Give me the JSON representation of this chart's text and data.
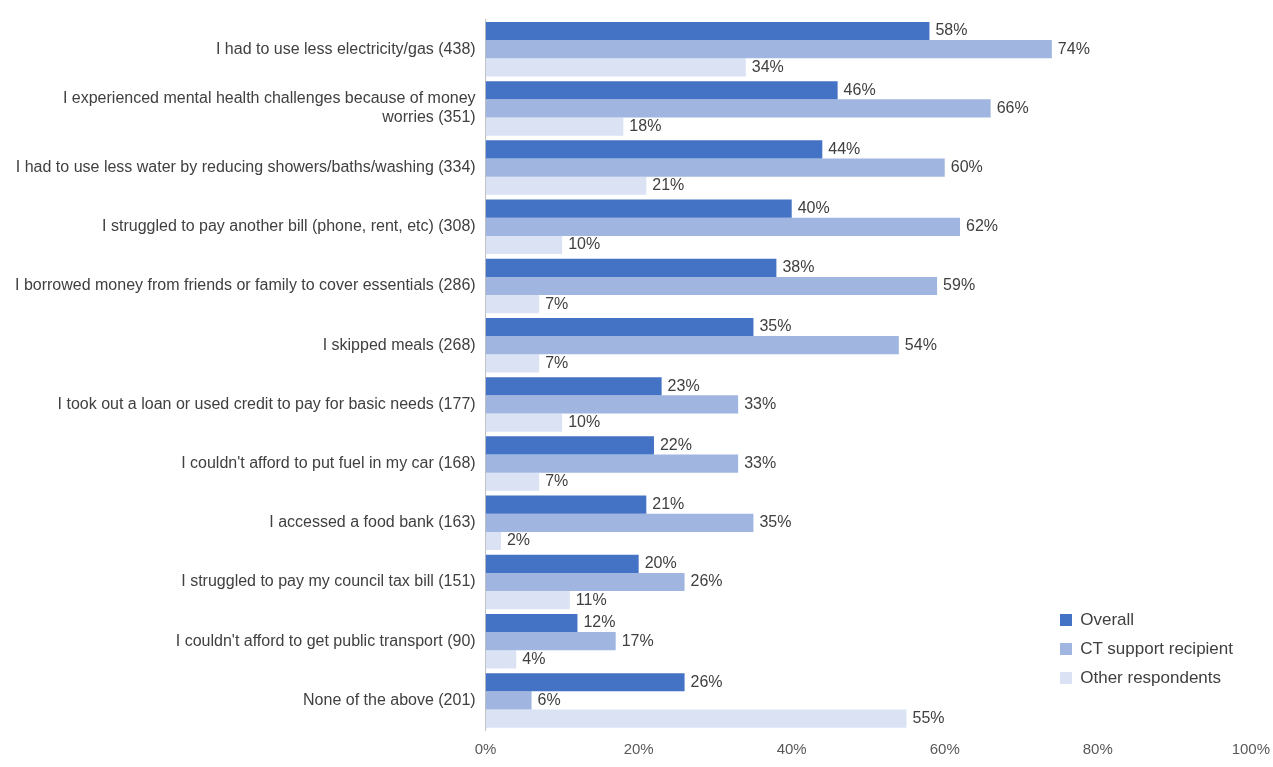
{
  "chart_data": {
    "type": "bar",
    "orientation": "horizontal",
    "categories": [
      "I had to use less electricity/gas (438)",
      "I experienced mental health challenges because of money worries (351)",
      "I had to use less water by reducing showers/baths/washing (334)",
      "I struggled to pay another bill (phone, rent, etc) (308)",
      "I borrowed money from friends or family to cover essentials (286)",
      "I skipped meals (268)",
      "I took out a loan or used credit to pay for basic needs (177)",
      "I couldn't afford to put fuel in my car (168)",
      "I accessed a food bank (163)",
      "I struggled to pay my council tax bill (151)",
      "I couldn't afford to get public transport (90)",
      "None of the above (201)"
    ],
    "series": [
      {
        "name": "Overall",
        "color": "#4472c4",
        "values": [
          58,
          46,
          44,
          40,
          38,
          35,
          23,
          22,
          21,
          20,
          12,
          26
        ],
        "value_labels": [
          "58%",
          "46%",
          "44%",
          "40%",
          "38%",
          "35%",
          "23%",
          "22%",
          "21%",
          "20%",
          "12%",
          "26%"
        ]
      },
      {
        "name": "CT support recipient",
        "color": "#a0b6e0",
        "values": [
          74,
          66,
          60,
          62,
          59,
          54,
          33,
          33,
          35,
          26,
          17,
          6
        ],
        "value_labels": [
          "74%",
          "66%",
          "60%",
          "62%",
          "59%",
          "54%",
          "33%",
          "33%",
          "35%",
          "26%",
          "17%",
          "6%"
        ]
      },
      {
        "name": "Other respondents",
        "color": "#dae2f3",
        "values": [
          34,
          18,
          21,
          10,
          7,
          7,
          10,
          7,
          2,
          11,
          4,
          55
        ],
        "value_labels": [
          "34%",
          "18%",
          "21%",
          "10%",
          "7%",
          "7%",
          "10%",
          "7%",
          "2%",
          "11%",
          "4%",
          "55%"
        ]
      }
    ],
    "xlim": [
      0,
      100
    ],
    "xticks": [
      {
        "value": 0,
        "label": "0%"
      },
      {
        "value": 20,
        "label": "20%"
      },
      {
        "value": 40,
        "label": "40%"
      },
      {
        "value": 60,
        "label": "60%"
      },
      {
        "value": 80,
        "label": "80%"
      },
      {
        "value": 100,
        "label": "100%"
      }
    ],
    "grid": false,
    "legend": "bottom right"
  }
}
